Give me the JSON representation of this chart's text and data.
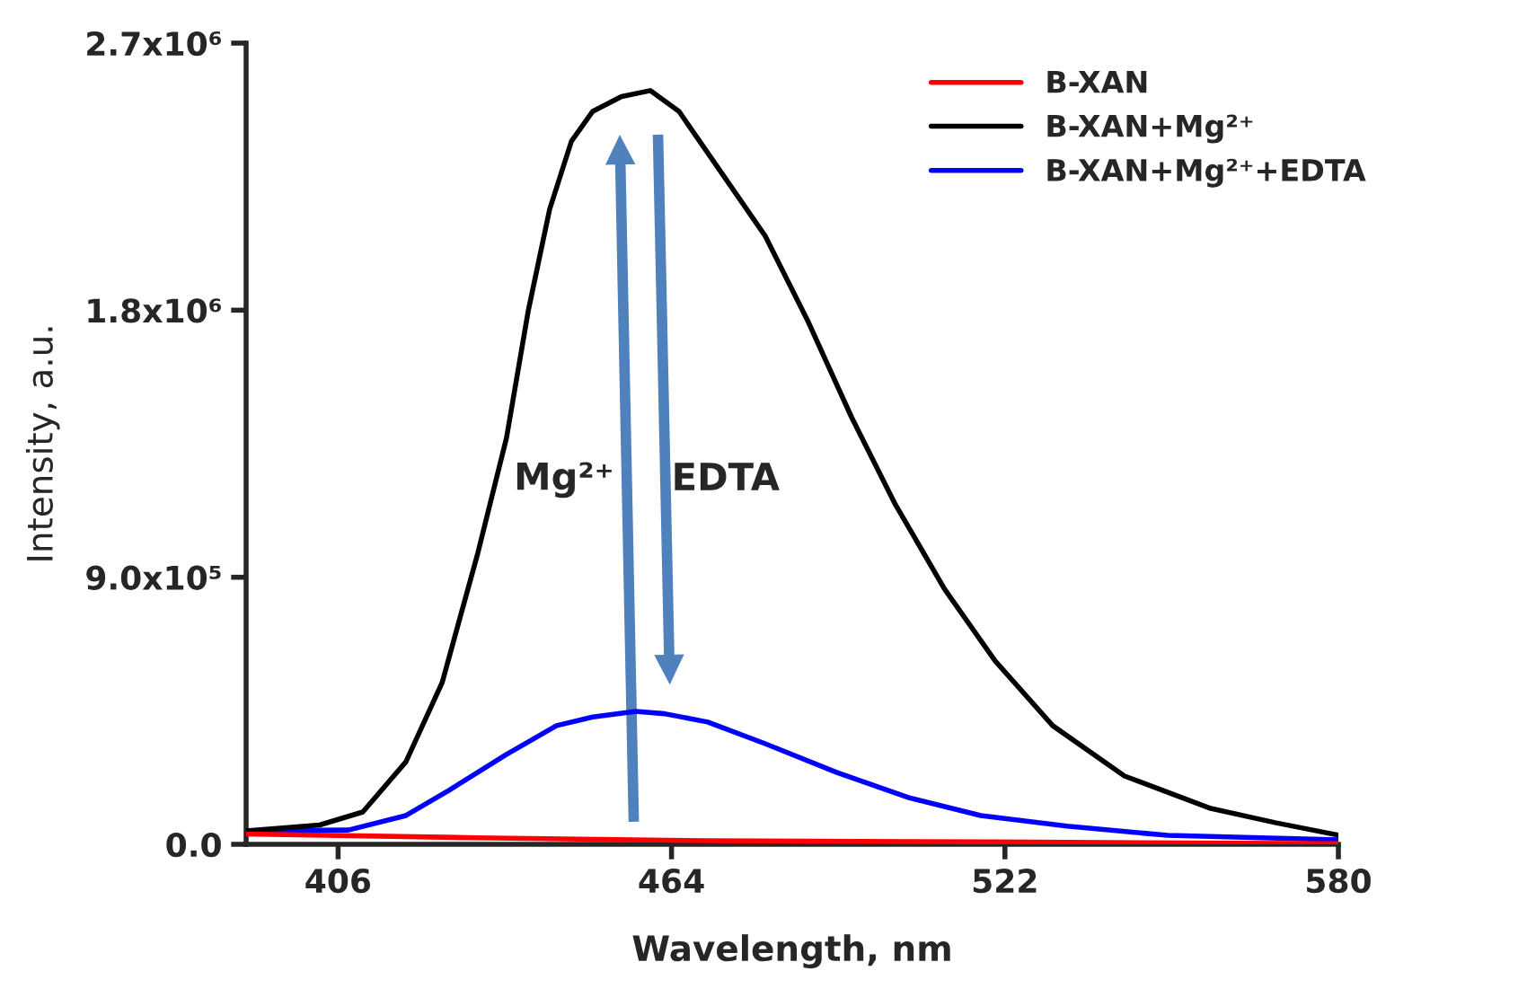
{
  "chart_data": {
    "type": "line",
    "xlabel": "Wavelength, nm",
    "ylabel": "Intensity, a.u.",
    "xlim": [
      390,
      580
    ],
    "xticks": [
      406,
      464,
      522,
      580
    ],
    "ylim": [
      0,
      2700000
    ],
    "yticks": [
      {
        "value": 0,
        "label": "0.0"
      },
      {
        "value": 900000,
        "label": "9.0x10⁵"
      },
      {
        "value": 1800000,
        "label": "1.8x10⁶"
      },
      {
        "value": 2700000,
        "label": "2.7x10⁶"
      }
    ],
    "grid": false,
    "legend": "top right",
    "line_style": "solid",
    "marker": "none",
    "series": [
      {
        "name": "B-XAN",
        "color": "#ff0000",
        "x": [
          390,
          430,
          470,
          520,
          580
        ],
        "values": [
          35000,
          22000,
          12000,
          8000,
          2000
        ]
      },
      {
        "name": "B-XAN+Mg²⁺",
        "color": "#000000",
        "x": [
          390,
          402.8,
          410.3,
          417.8,
          424.1,
          430.3,
          435.3,
          439.1,
          442.8,
          446.6,
          450.3,
          455.3,
          460.3,
          465.3,
          472.8,
          480.3,
          487.8,
          495.3,
          502.8,
          511.5,
          520.3,
          530.3,
          542.8,
          557.8,
          569,
          580
        ],
        "values": [
          45000,
          65000,
          109000,
          278000,
          545000,
          981000,
          1370000,
          1800000,
          2140000,
          2370000,
          2470000,
          2520000,
          2540000,
          2470000,
          2260000,
          2050000,
          1760000,
          1440000,
          1150000,
          860000,
          618000,
          400000,
          230000,
          121000,
          73000,
          31000
        ]
      },
      {
        "name": "B-XAN+Mg²⁺+EDTA",
        "color": "#0000ff",
        "x": [
          390,
          407.8,
          417.8,
          425.3,
          435.3,
          444,
          450.3,
          457.8,
          462.8,
          470.3,
          480.3,
          492.8,
          505.3,
          517.8,
          532.8,
          550.3,
          580
        ],
        "values": [
          45000,
          48000,
          97000,
          182000,
          303000,
          400000,
          429000,
          448000,
          440000,
          412000,
          339000,
          242000,
          157000,
          97000,
          61000,
          30000,
          15000
        ]
      }
    ],
    "annotations": [
      "Mg²⁺",
      "EDTA"
    ]
  }
}
